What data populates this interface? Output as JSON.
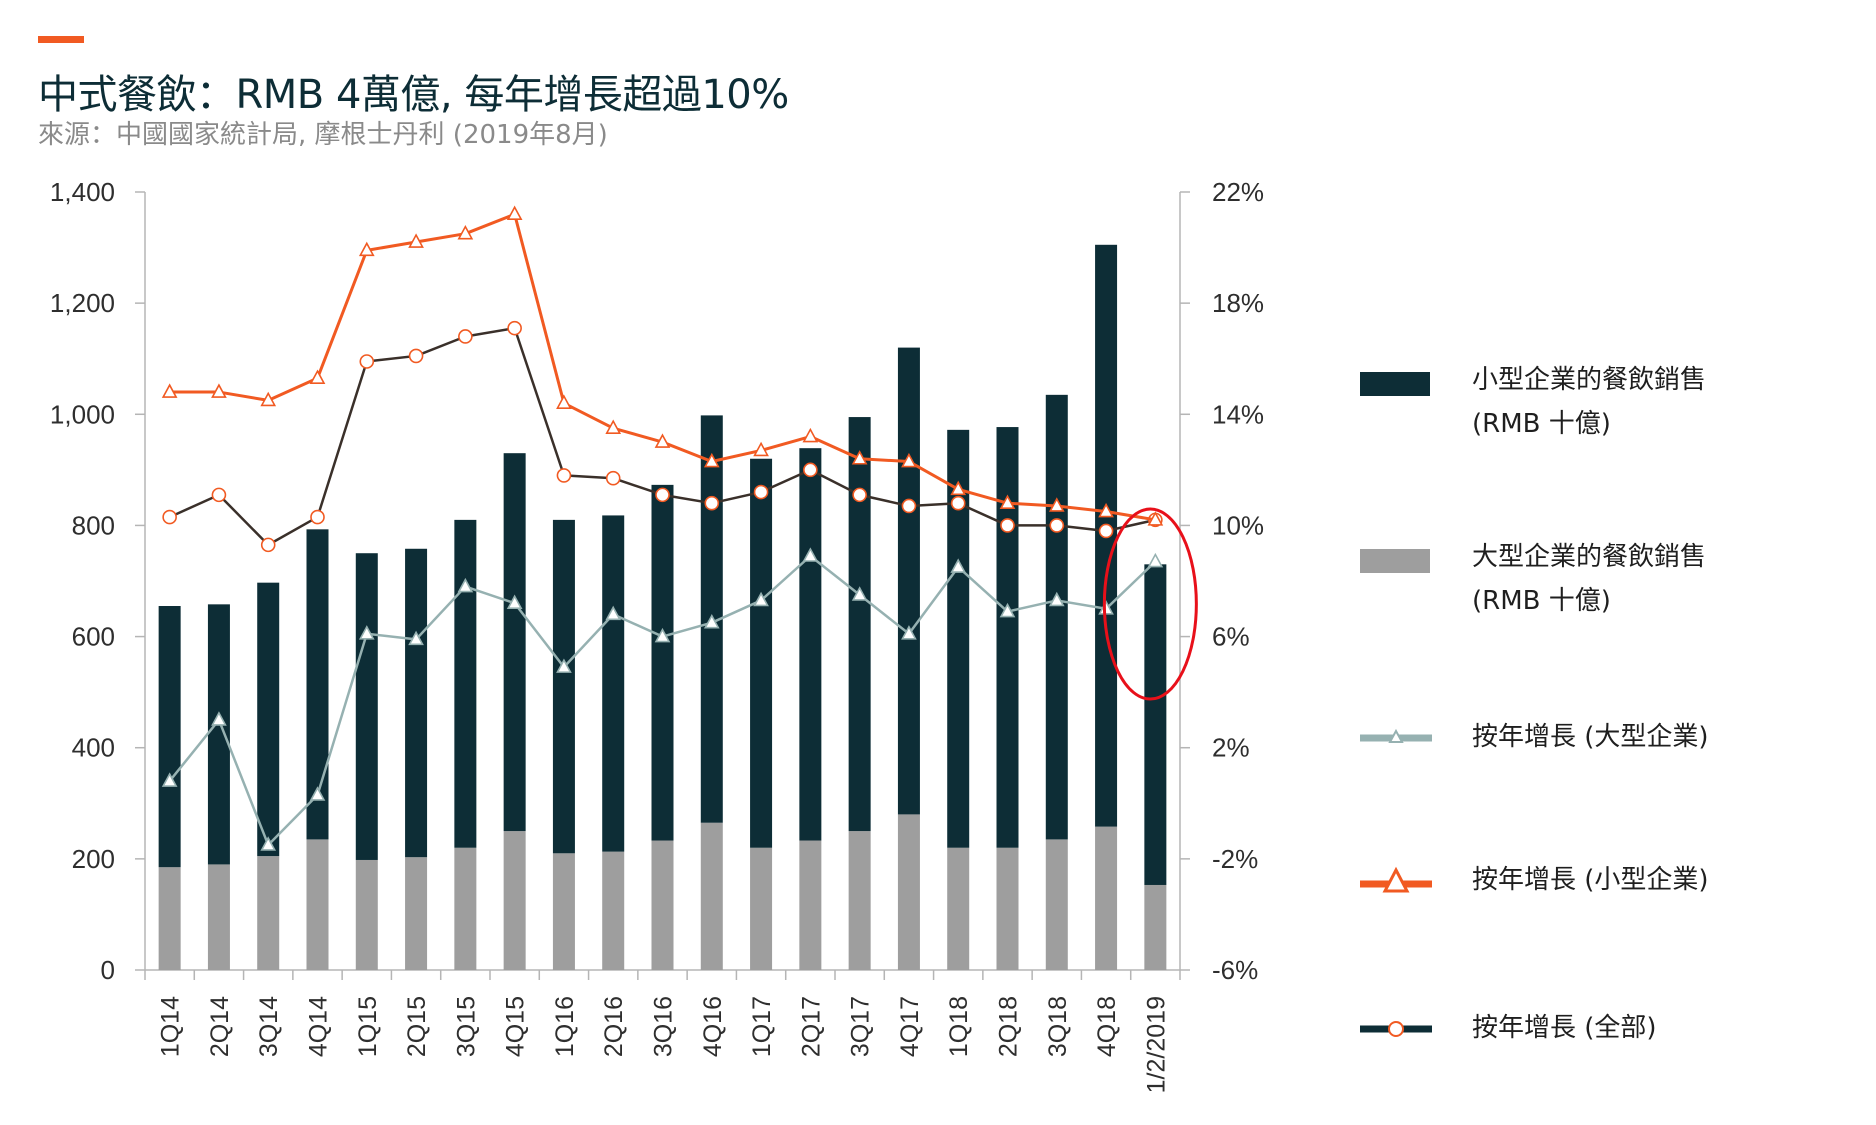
{
  "header": {
    "title": "中式餐飲：RMB 4萬億, 每年增長超過10%",
    "subtitle": "來源：中國國家統計局, 摩根士丹利 (2019年8月)"
  },
  "colors": {
    "accent": "#f15a22",
    "small_bar": "#0d2d36",
    "large_bar": "#9e9e9e",
    "growth_large": "#96b1b1",
    "growth_small": "#f15a22",
    "growth_total": "#3a302a",
    "highlight": "#e8101a"
  },
  "legend": [
    {
      "label": "小型企業的餐飲銷售",
      "label2": "(RMB 十億)",
      "icon": "bar-swatch"
    },
    {
      "label": "大型企業的餐飲銷售",
      "label2": "(RMB 十億)",
      "icon": "bar-swatch"
    },
    {
      "label": "按年增長 (大型企業)",
      "label2": "",
      "icon": "line-triangle-swatch"
    },
    {
      "label": "按年增長 (小型企業)",
      "label2": "",
      "icon": "line-triangle-swatch"
    },
    {
      "label": "按年增長 (全部)",
      "label2": "",
      "icon": "line-circle-swatch"
    }
  ],
  "chart_data": {
    "type": "bar",
    "stacked": true,
    "categories": [
      "1Q14",
      "2Q14",
      "3Q14",
      "4Q14",
      "1Q15",
      "2Q15",
      "3Q15",
      "4Q15",
      "1Q16",
      "2Q16",
      "3Q16",
      "4Q16",
      "1Q17",
      "2Q17",
      "3Q17",
      "4Q17",
      "1Q18",
      "2Q18",
      "3Q18",
      "4Q18",
      "1/2/2019"
    ],
    "left_axis": {
      "ylim": [
        0,
        1400
      ],
      "ticks": [
        "0",
        "200",
        "400",
        "600",
        "800",
        "1,000",
        "1,200",
        "1,400"
      ]
    },
    "right_axis": {
      "ylim": [
        -6,
        22
      ],
      "ticks": [
        "-6%",
        "-2%",
        "2%",
        "6%",
        "10%",
        "14%",
        "18%",
        "22%"
      ]
    },
    "series": [
      {
        "name": "大型企業的餐飲銷售",
        "label2": "(RMB 十億)",
        "kind": "bar",
        "axis": "left",
        "values": [
          185,
          190,
          205,
          235,
          198,
          203,
          220,
          250,
          210,
          213,
          233,
          265,
          220,
          233,
          250,
          280,
          220,
          220,
          235,
          258,
          153
        ]
      },
      {
        "name": "小型企業的餐飲銷售",
        "label2": "(RMB 十億)",
        "kind": "bar",
        "axis": "left",
        "values": [
          470,
          468,
          492,
          558,
          552,
          555,
          590,
          680,
          600,
          605,
          640,
          733,
          700,
          706,
          745,
          840,
          752,
          757,
          800,
          1047,
          577
        ]
      },
      {
        "name": "按年增長 (大型企業)",
        "kind": "line",
        "marker": "triangle",
        "axis": "right",
        "values": [
          0.8,
          3.0,
          -1.5,
          0.3,
          6.1,
          5.9,
          7.8,
          7.2,
          4.9,
          6.8,
          6.0,
          6.5,
          7.3,
          8.9,
          7.5,
          6.1,
          8.5,
          6.9,
          7.3,
          7.0,
          8.7
        ]
      },
      {
        "name": "按年增長 (小型企業)",
        "kind": "line",
        "marker": "triangle",
        "axis": "right",
        "values": [
          14.8,
          14.8,
          14.5,
          15.3,
          19.9,
          20.2,
          20.5,
          21.2,
          14.4,
          13.5,
          13.0,
          12.3,
          12.7,
          13.2,
          12.4,
          12.3,
          11.3,
          10.8,
          10.7,
          10.5,
          10.2
        ]
      },
      {
        "name": "按年增長 (全部)",
        "kind": "line",
        "marker": "circle",
        "axis": "right",
        "values": [
          10.3,
          11.1,
          9.3,
          10.3,
          15.9,
          16.1,
          16.8,
          17.1,
          11.8,
          11.7,
          11.1,
          10.8,
          11.2,
          12.0,
          11.1,
          10.7,
          10.8,
          10.0,
          10.0,
          9.8,
          10.2
        ]
      }
    ]
  }
}
